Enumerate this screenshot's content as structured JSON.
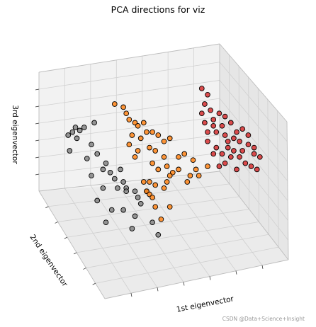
{
  "chart_data": {
    "type": "scatter",
    "title": "PCA directions for viz",
    "xlabel": "1st eigenvector",
    "ylabel": "2nd eigenvector",
    "zlabel": "3rd eigenvector",
    "tick_labels_shown": false,
    "grid": true,
    "series": [
      {
        "color": "#7f7f7f",
        "points": [
          [
            4,
            70
          ],
          [
            7,
            72
          ],
          [
            9,
            75
          ],
          [
            12,
            73
          ],
          [
            5,
            60
          ],
          [
            10,
            68
          ],
          [
            15,
            75
          ],
          [
            22,
            78
          ],
          [
            20,
            64
          ],
          [
            17,
            55
          ],
          [
            24,
            58
          ],
          [
            30,
            52
          ],
          [
            28,
            48
          ],
          [
            33,
            46
          ],
          [
            40,
            48
          ],
          [
            36,
            42
          ],
          [
            42,
            40
          ],
          [
            44,
            36
          ],
          [
            38,
            36
          ],
          [
            28,
            36
          ],
          [
            20,
            44
          ],
          [
            24,
            28
          ],
          [
            34,
            22
          ],
          [
            42,
            22
          ],
          [
            50,
            18
          ],
          [
            30,
            14
          ],
          [
            44,
            34
          ],
          [
            50,
            34
          ],
          [
            52,
            30
          ],
          [
            58,
            34
          ],
          [
            54,
            26
          ],
          [
            48,
            10
          ],
          [
            62,
            14
          ],
          [
            66,
            6
          ]
        ]
      },
      {
        "color": "#ff7f0e",
        "points": [
          [
            36,
            90
          ],
          [
            42,
            88
          ],
          [
            44,
            84
          ],
          [
            46,
            80
          ],
          [
            50,
            78
          ],
          [
            52,
            76
          ],
          [
            48,
            70
          ],
          [
            56,
            78
          ],
          [
            58,
            72
          ],
          [
            54,
            68
          ],
          [
            62,
            72
          ],
          [
            66,
            70
          ],
          [
            70,
            66
          ],
          [
            74,
            68
          ],
          [
            60,
            62
          ],
          [
            64,
            60
          ],
          [
            70,
            56
          ],
          [
            80,
            56
          ],
          [
            84,
            58
          ],
          [
            90,
            54
          ],
          [
            94,
            44
          ],
          [
            100,
            50
          ],
          [
            62,
            52
          ],
          [
            66,
            48
          ],
          [
            72,
            50
          ],
          [
            76,
            46
          ],
          [
            80,
            48
          ],
          [
            88,
            44
          ],
          [
            92,
            48
          ],
          [
            86,
            40
          ],
          [
            60,
            40
          ],
          [
            64,
            38
          ],
          [
            70,
            36
          ],
          [
            74,
            44
          ],
          [
            50,
            56
          ],
          [
            56,
            40
          ],
          [
            52,
            60
          ],
          [
            46,
            64
          ],
          [
            72,
            40
          ],
          [
            58,
            34
          ],
          [
            60,
            32
          ],
          [
            62,
            30
          ],
          [
            64,
            24
          ],
          [
            74,
            24
          ],
          [
            68,
            16
          ]
        ]
      },
      {
        "color": "#d62728",
        "points": [
          [
            96,
            100
          ],
          [
            100,
            96
          ],
          [
            98,
            90
          ],
          [
            102,
            86
          ],
          [
            104,
            80
          ],
          [
            108,
            84
          ],
          [
            112,
            82
          ],
          [
            98,
            78
          ],
          [
            104,
            76
          ],
          [
            110,
            76
          ],
          [
            116,
            78
          ],
          [
            120,
            72
          ],
          [
            106,
            72
          ],
          [
            112,
            70
          ],
          [
            118,
            68
          ],
          [
            122,
            66
          ],
          [
            128,
            64
          ],
          [
            114,
            62
          ],
          [
            124,
            60
          ],
          [
            132,
            58
          ],
          [
            100,
            66
          ],
          [
            106,
            62
          ],
          [
            110,
            58
          ],
          [
            116,
            56
          ],
          [
            122,
            56
          ],
          [
            126,
            52
          ],
          [
            130,
            50
          ],
          [
            134,
            48
          ],
          [
            120,
            48
          ],
          [
            112,
            52
          ],
          [
            104,
            58
          ],
          [
            108,
            50
          ],
          [
            118,
            60
          ],
          [
            136,
            56
          ],
          [
            128,
            70
          ],
          [
            114,
            66
          ],
          [
            100,
            72
          ],
          [
            124,
            74
          ],
          [
            132,
            62
          ],
          [
            96,
            84
          ]
        ]
      }
    ]
  }
}
